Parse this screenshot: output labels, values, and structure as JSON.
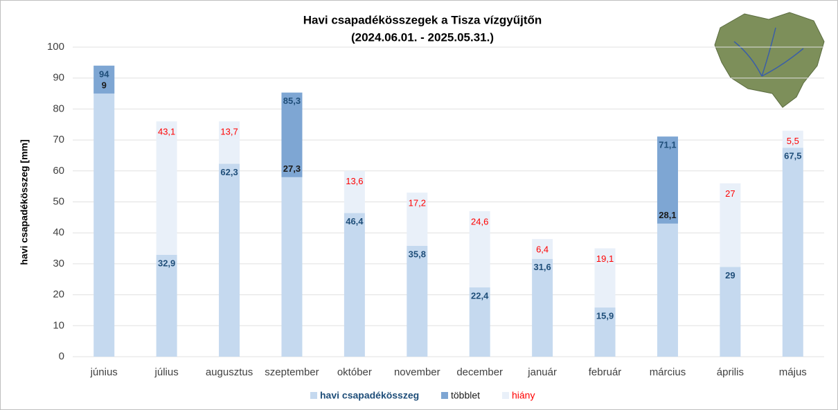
{
  "chart_data": {
    "type": "bar",
    "title": "Havi csapadékösszegek a Tisza vízgyűjtőn",
    "subtitle": "(2024.06.01. - 2025.05.31.)",
    "y_label": "havi csapadékösszeg [mm]",
    "categories": [
      "június",
      "július",
      "augusztus",
      "szeptember",
      "október",
      "november",
      "december",
      "január",
      "február",
      "március",
      "április",
      "május"
    ],
    "series": [
      {
        "name": "havi csapadékösszeg",
        "color": "#c5d9ef",
        "label_color": "#1f4e79",
        "values": [
          94,
          32.9,
          62.3,
          85.3,
          46.4,
          35.8,
          22.4,
          31.6,
          15.9,
          71.1,
          29,
          67.5
        ],
        "value_labels": [
          "94",
          "32,9",
          "62,3",
          "85,3",
          "46,4",
          "35,8",
          "22,4",
          "31,6",
          "15,9",
          "71,1",
          "29",
          "67,5"
        ]
      },
      {
        "name": "többlet",
        "color": "#7ea6d3",
        "label_color": "#1a1a1a",
        "values": [
          9,
          null,
          null,
          27.3,
          null,
          null,
          null,
          null,
          null,
          28.1,
          null,
          null
        ],
        "value_labels": [
          "9",
          null,
          null,
          "27,3",
          null,
          null,
          null,
          null,
          null,
          "28,1",
          null,
          null
        ]
      },
      {
        "name": "hiány",
        "color": "#e9f0f9",
        "label_color": "#ff0000",
        "values": [
          null,
          43.1,
          13.7,
          null,
          13.6,
          17.2,
          24.6,
          6.4,
          19.1,
          null,
          27,
          5.5
        ],
        "value_labels": [
          null,
          "43,1",
          "13,7",
          null,
          "13,6",
          "17,2",
          "24,6",
          "6,4",
          "19,1",
          null,
          "27",
          "5,5"
        ]
      }
    ],
    "ylim": [
      0,
      100
    ],
    "yticks": [
      0,
      10,
      20,
      30,
      40,
      50,
      60,
      70,
      80,
      90,
      100
    ],
    "grid": true,
    "legend": "bottom"
  }
}
